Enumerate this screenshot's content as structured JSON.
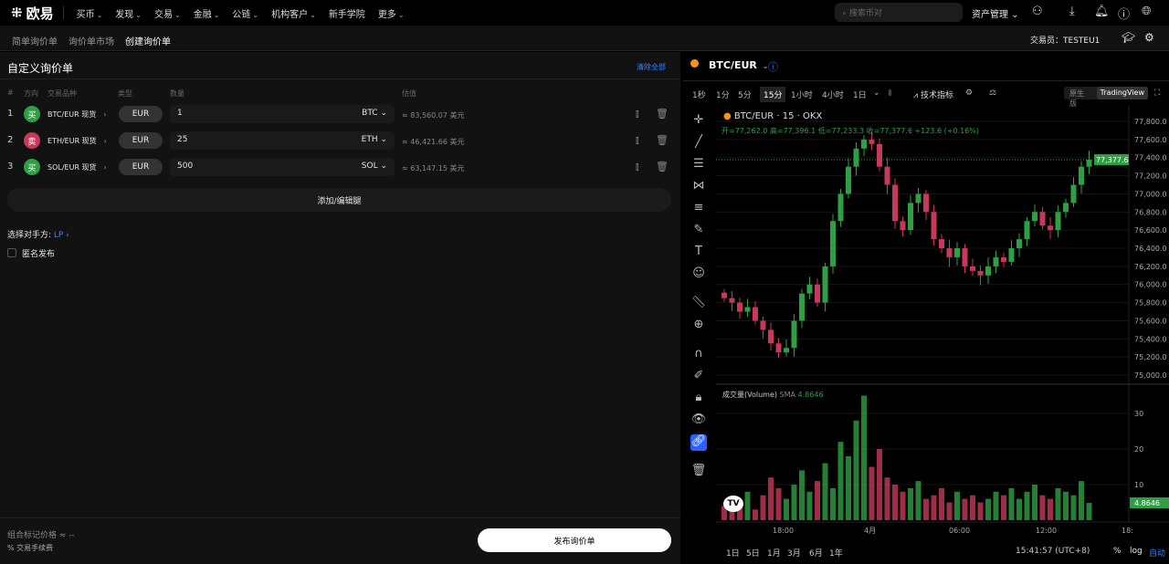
{
  "nav": {
    "brand": "欧易",
    "items": [
      "买币",
      "发现",
      "交易",
      "金融",
      "公链",
      "机构客户",
      "新手学院",
      "更多"
    ],
    "search_placeholder": "搜索币对",
    "assets": "资产管理"
  },
  "subtabs": [
    "简单询价单",
    "询价单市场",
    "创建询价单"
  ],
  "trader": {
    "label": "交易员：",
    "name": "TESTEU1"
  },
  "form": {
    "title": "自定义询价单",
    "clear_all": "清除全部",
    "headers": [
      "#",
      "方向",
      "交易品种",
      "类型",
      "数量",
      "估值"
    ],
    "legs": [
      {
        "n": "1",
        "side": "买",
        "side_color": "#2ea043",
        "instrument": "BTC/EUR 现货",
        "type": "EUR",
        "qty": "1",
        "unit": "BTC",
        "est": "≈ 83,560.07 美元"
      },
      {
        "n": "2",
        "side": "卖",
        "side_color": "#c8385a",
        "instrument": "ETH/EUR 现货",
        "type": "EUR",
        "qty": "25",
        "unit": "ETH",
        "est": "≈ 46,421.66 美元"
      },
      {
        "n": "3",
        "side": "买",
        "side_color": "#2ea043",
        "instrument": "SOL/EUR 现货",
        "type": "EUR",
        "qty": "500",
        "unit": "SOL",
        "est": "≈ 63,147.15 美元"
      }
    ],
    "add_edit": "添加/编辑腿",
    "counterparty_label": "选择对手方:",
    "counterparty_value": "LP",
    "anonymous": "匿名发布",
    "mark_price": "组合标记价格 ≈ --",
    "fee": "% 交易手续费",
    "submit": "发布询价单"
  },
  "chart": {
    "pair": "BTC/EUR",
    "intervals": [
      "1秒",
      "1分",
      "5分",
      "15分",
      "1小时",
      "4小时",
      "1日"
    ],
    "active_interval": "15分",
    "indicators": "技术指标",
    "mode_native": "原生版",
    "mode_tv": "TradingView",
    "legend_title": "BTC/EUR · 15 · OKX",
    "ohlc": "开=77,262.0 高=77,396.1 低=77,233.3 收=77,377.6 +123.6 (+0.16%)",
    "volume_label": "成交量(Volume)",
    "volume_sma": "SMA",
    "volume_value": "4.8646",
    "last_price": "77,377.6",
    "price_ticks": [
      "77,800.0",
      "77,600.0",
      "77,400.0",
      "77,200.0",
      "77,000.0",
      "76,800.0",
      "76,600.0",
      "76,400.0",
      "76,200.0",
      "76,000.0",
      "75,800.0",
      "75,600.0",
      "75,400.0",
      "75,200.0",
      "75,000.0"
    ],
    "volume_ticks": [
      "30",
      "20",
      "10"
    ],
    "time_ticks": [
      "18:00",
      "4月",
      "06:00",
      "12:00",
      "18:"
    ],
    "ranges": [
      "1日",
      "5日",
      "1月",
      "3月",
      "6月",
      "1年"
    ],
    "clock": "15:41:57 (UTC+8)",
    "pct": "%",
    "log": "log",
    "auto": "自动",
    "up_color": "#2ea043",
    "down_color": "#c8385a",
    "closes": [
      75850,
      75800,
      75700,
      75750,
      75600,
      75500,
      75350,
      75250,
      75300,
      75600,
      75900,
      76000,
      75800,
      76200,
      76700,
      77000,
      77300,
      77500,
      77600,
      77550,
      77300,
      77100,
      76700,
      76600,
      76900,
      77000,
      76800,
      76500,
      76400,
      76300,
      76400,
      76200,
      76150,
      76100,
      76200,
      76300,
      76250,
      76400,
      76500,
      76700,
      76800,
      76650,
      76600,
      76800,
      76900,
      77100,
      77300,
      77377.6
    ],
    "volumes": [
      4,
      6,
      5,
      8,
      3,
      7,
      12,
      9,
      6,
      10,
      14,
      8,
      11,
      16,
      9,
      22,
      18,
      28,
      35,
      15,
      20,
      12,
      10,
      8,
      9,
      11,
      6,
      7,
      9,
      5,
      8,
      6,
      7,
      5,
      6,
      8,
      7,
      9,
      6,
      8,
      10,
      7,
      6,
      9,
      8,
      7,
      11,
      4.86
    ]
  }
}
